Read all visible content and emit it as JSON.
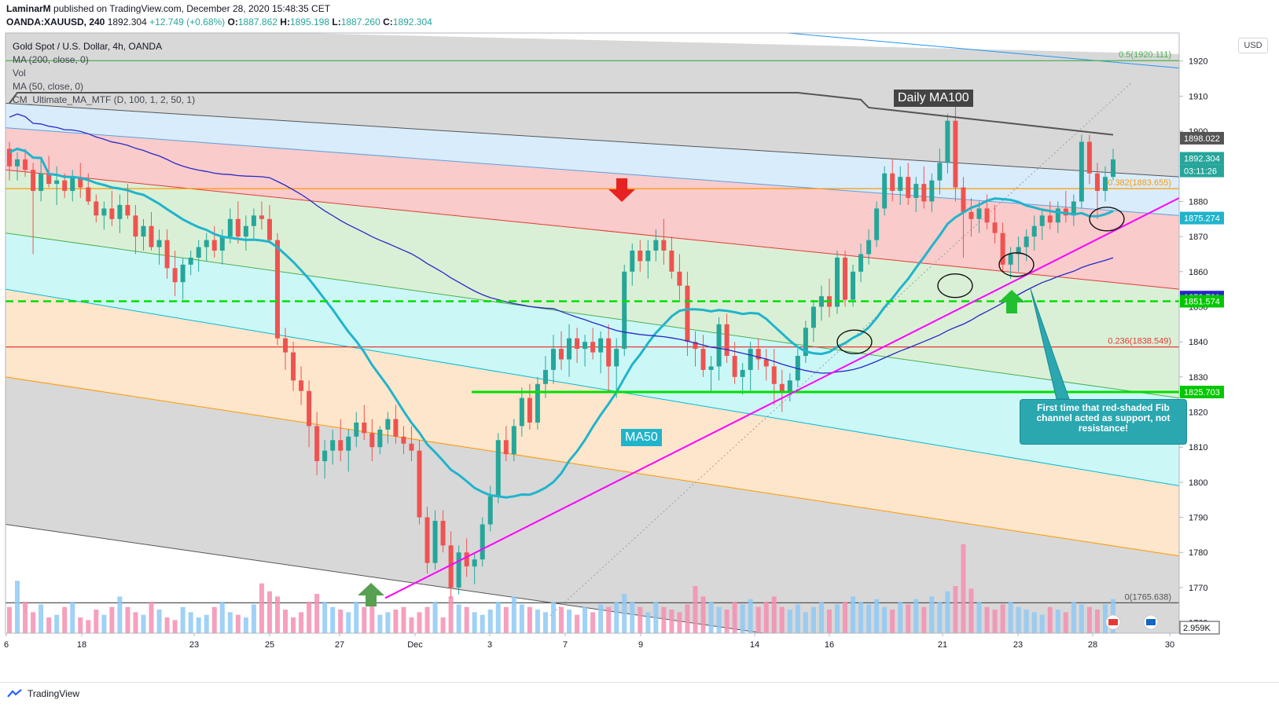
{
  "header": {
    "publisher": "LaminarM",
    "published_text": "published on TradingView.com, December 28, 2020 15:48:35 CET",
    "symbol": "OANDA:XAUUSD, 240",
    "price": "1892.304",
    "change": "+12.749 (+0.68%)",
    "o_label": "O:",
    "o_value": "1887.862",
    "h_label": "H:",
    "h_value": "1895.198",
    "l_label": "L:",
    "l_value": "1887.260",
    "c_label": "C:",
    "c_value": "1892.304"
  },
  "legend": {
    "title": "Gold Spot / U.S. Dollar, 4h, OANDA",
    "ma200": "MA (200, close, 0)",
    "vol": "Vol",
    "ma50": "MA (50, close, 0)",
    "cm": "CM_Ultimate_MA_MTF (D, 100, 1, 2, 50, 1)"
  },
  "currency_button": "USD",
  "annotations": {
    "daily_ma100": "Daily MA100",
    "ma50": "MA50",
    "note": "First time that red-shaded Fib channel acted as support, not resistance!"
  },
  "footer": {
    "brand": "TradingView"
  },
  "colors": {
    "up": "#26a69a",
    "down": "#ef5350",
    "ma50": "#20b4cc",
    "ma200": "#2828c8",
    "daily_ma100": "#555555",
    "trendline": "#ff00ff",
    "support_green": "#00e000",
    "fib_red": "#e53935",
    "fib_orange": "#ff9800"
  },
  "chart_data": {
    "type": "candlestick",
    "ylim": [
      1757,
      1928
    ],
    "y_ticks": [
      1760,
      1770,
      1780,
      1790,
      1800,
      1810,
      1820,
      1830,
      1840,
      1850,
      1860,
      1870,
      1880,
      1890,
      1900,
      1910,
      1920
    ],
    "x_ticks": [
      {
        "label": "6",
        "date": "2020-11-16"
      },
      {
        "label": "18",
        "date": "2020-11-18"
      },
      {
        "label": "23",
        "date": "2020-11-23"
      },
      {
        "label": "25",
        "date": "2020-11-25"
      },
      {
        "label": "27",
        "date": "2020-11-27"
      },
      {
        "label": "Dec",
        "date": "2020-12-01"
      },
      {
        "label": "3",
        "date": "2020-12-03"
      },
      {
        "label": "7",
        "date": "2020-12-07"
      },
      {
        "label": "9",
        "date": "2020-12-09"
      },
      {
        "label": "14",
        "date": "2020-12-14"
      },
      {
        "label": "16",
        "date": "2020-12-16"
      },
      {
        "label": "21",
        "date": "2020-12-21"
      },
      {
        "label": "23",
        "date": "2020-12-23"
      },
      {
        "label": "28",
        "date": "2020-12-28"
      },
      {
        "label": "30",
        "date": "2020-12-30"
      }
    ],
    "price_labels": [
      {
        "text": "1898.022",
        "value": 1898.022,
        "bg": "#555555"
      },
      {
        "text": "1892.304",
        "value": 1892.304,
        "bg": "#26a69a"
      },
      {
        "text": "03:11:26",
        "value": 1888.7,
        "bg": "#26a69a"
      },
      {
        "text": "1875.274",
        "value": 1875.274,
        "bg": "#20b4cc"
      },
      {
        "text": "1852.761",
        "value": 1852.761,
        "bg": "#2828c8"
      },
      {
        "text": "1851.574",
        "value": 1851.574,
        "bg": "#00c800"
      },
      {
        "text": "1825.703",
        "value": 1825.703,
        "bg": "#00c800"
      }
    ],
    "volume_label": "2.959K",
    "fib_levels": [
      {
        "text": "0.5(1920.111)",
        "value": 1920.111,
        "color": "#4caf50"
      },
      {
        "text": "0.382(1883.655)",
        "value": 1883.655,
        "color": "#ff9800"
      },
      {
        "text": "0.236(1838.549)",
        "value": 1838.549,
        "color": "#e53935"
      },
      {
        "text": "0(1765.638)",
        "value": 1765.638,
        "color": "#555555"
      }
    ],
    "candles": [
      [
        1895,
        1897,
        1886,
        1890
      ],
      [
        1890,
        1894,
        1886,
        1892
      ],
      [
        1892,
        1895,
        1887,
        1889
      ],
      [
        1889,
        1891,
        1865,
        1883
      ],
      [
        1883,
        1892,
        1880,
        1888
      ],
      [
        1888,
        1893,
        1884,
        1885
      ],
      [
        1885,
        1890,
        1879,
        1886
      ],
      [
        1886,
        1888,
        1881,
        1883
      ],
      [
        1883,
        1889,
        1880,
        1887
      ],
      [
        1887,
        1891,
        1881,
        1884
      ],
      [
        1884,
        1888,
        1879,
        1880
      ],
      [
        1880,
        1882,
        1874,
        1876
      ],
      [
        1876,
        1880,
        1872,
        1878
      ],
      [
        1878,
        1883,
        1873,
        1875
      ],
      [
        1875,
        1882,
        1871,
        1879
      ],
      [
        1879,
        1885,
        1875,
        1876
      ],
      [
        1876,
        1879,
        1865,
        1870
      ],
      [
        1870,
        1875,
        1866,
        1873
      ],
      [
        1873,
        1877,
        1866,
        1867
      ],
      [
        1867,
        1872,
        1862,
        1869
      ],
      [
        1869,
        1872,
        1858,
        1861
      ],
      [
        1861,
        1866,
        1853,
        1857
      ],
      [
        1857,
        1864,
        1852,
        1862
      ],
      [
        1862,
        1866,
        1859,
        1864
      ],
      [
        1864,
        1869,
        1860,
        1867
      ],
      [
        1867,
        1871,
        1863,
        1869
      ],
      [
        1869,
        1873,
        1864,
        1866
      ],
      [
        1866,
        1872,
        1862,
        1870
      ],
      [
        1870,
        1878,
        1868,
        1875
      ],
      [
        1875,
        1880,
        1868,
        1870
      ],
      [
        1870,
        1876,
        1866,
        1873
      ],
      [
        1873,
        1878,
        1869,
        1876
      ],
      [
        1876,
        1880,
        1872,
        1875
      ],
      [
        1875,
        1879,
        1868,
        1869
      ],
      [
        1869,
        1871,
        1839,
        1841
      ],
      [
        1841,
        1844,
        1832,
        1837
      ],
      [
        1837,
        1840,
        1826,
        1829
      ],
      [
        1829,
        1833,
        1822,
        1826
      ],
      [
        1826,
        1829,
        1810,
        1816
      ],
      [
        1816,
        1820,
        1802,
        1806
      ],
      [
        1806,
        1812,
        1801,
        1809
      ],
      [
        1809,
        1815,
        1805,
        1812
      ],
      [
        1812,
        1818,
        1806,
        1809
      ],
      [
        1809,
        1815,
        1803,
        1813
      ],
      [
        1813,
        1820,
        1810,
        1817
      ],
      [
        1817,
        1822,
        1812,
        1814
      ],
      [
        1814,
        1818,
        1806,
        1810
      ],
      [
        1810,
        1816,
        1808,
        1815
      ],
      [
        1815,
        1820,
        1811,
        1818
      ],
      [
        1818,
        1822,
        1811,
        1813
      ],
      [
        1813,
        1816,
        1808,
        1811
      ],
      [
        1811,
        1816,
        1806,
        1809
      ],
      [
        1809,
        1812,
        1788,
        1790
      ],
      [
        1790,
        1793,
        1774,
        1777
      ],
      [
        1777,
        1792,
        1775,
        1789
      ],
      [
        1789,
        1792,
        1780,
        1782
      ],
      [
        1782,
        1786,
        1767,
        1770
      ],
      [
        1770,
        1782,
        1768,
        1780
      ],
      [
        1780,
        1784,
        1773,
        1776
      ],
      [
        1776,
        1780,
        1771,
        1778
      ],
      [
        1778,
        1790,
        1776,
        1788
      ],
      [
        1788,
        1799,
        1786,
        1796
      ],
      [
        1796,
        1814,
        1794,
        1812
      ],
      [
        1812,
        1816,
        1806,
        1808
      ],
      [
        1808,
        1818,
        1806,
        1816
      ],
      [
        1816,
        1827,
        1813,
        1824
      ],
      [
        1824,
        1828,
        1815,
        1817
      ],
      [
        1817,
        1830,
        1815,
        1828
      ],
      [
        1828,
        1836,
        1824,
        1832
      ],
      [
        1832,
        1842,
        1828,
        1838
      ],
      [
        1838,
        1843,
        1832,
        1835
      ],
      [
        1835,
        1845,
        1830,
        1841
      ],
      [
        1841,
        1844,
        1834,
        1838
      ],
      [
        1838,
        1842,
        1833,
        1840
      ],
      [
        1840,
        1844,
        1835,
        1837
      ],
      [
        1837,
        1843,
        1831,
        1841
      ],
      [
        1841,
        1845,
        1826,
        1833
      ],
      [
        1833,
        1841,
        1824,
        1838
      ],
      [
        1838,
        1862,
        1836,
        1860
      ],
      [
        1860,
        1868,
        1856,
        1866
      ],
      [
        1866,
        1869,
        1860,
        1863
      ],
      [
        1863,
        1869,
        1858,
        1866
      ],
      [
        1866,
        1872,
        1863,
        1869
      ],
      [
        1869,
        1875,
        1862,
        1866
      ],
      [
        1866,
        1870,
        1858,
        1860
      ],
      [
        1860,
        1865,
        1852,
        1856
      ],
      [
        1856,
        1860,
        1836,
        1840
      ],
      [
        1840,
        1843,
        1833,
        1838
      ],
      [
        1838,
        1842,
        1830,
        1832
      ],
      [
        1832,
        1836,
        1826,
        1833
      ],
      [
        1833,
        1847,
        1829,
        1845
      ],
      [
        1845,
        1848,
        1834,
        1836
      ],
      [
        1836,
        1840,
        1828,
        1830
      ],
      [
        1830,
        1834,
        1825,
        1832
      ],
      [
        1832,
        1840,
        1826,
        1838
      ],
      [
        1838,
        1841,
        1832,
        1835
      ],
      [
        1835,
        1838,
        1829,
        1833
      ],
      [
        1833,
        1838,
        1822,
        1828
      ],
      [
        1828,
        1832,
        1820,
        1826
      ],
      [
        1826,
        1831,
        1823,
        1829
      ],
      [
        1829,
        1838,
        1827,
        1836
      ],
      [
        1836,
        1846,
        1834,
        1844
      ],
      [
        1844,
        1852,
        1840,
        1850
      ],
      [
        1850,
        1856,
        1846,
        1853
      ],
      [
        1853,
        1858,
        1847,
        1850
      ],
      [
        1850,
        1866,
        1848,
        1864
      ],
      [
        1864,
        1866,
        1850,
        1852
      ],
      [
        1852,
        1862,
        1850,
        1860
      ],
      [
        1860,
        1868,
        1857,
        1865
      ],
      [
        1865,
        1872,
        1862,
        1869
      ],
      [
        1869,
        1880,
        1867,
        1878
      ],
      [
        1878,
        1890,
        1876,
        1888
      ],
      [
        1888,
        1892,
        1880,
        1883
      ],
      [
        1883,
        1890,
        1879,
        1887
      ],
      [
        1887,
        1891,
        1879,
        1881
      ],
      [
        1881,
        1887,
        1877,
        1885
      ],
      [
        1885,
        1890,
        1878,
        1880
      ],
      [
        1880,
        1888,
        1877,
        1886
      ],
      [
        1886,
        1895,
        1882,
        1891
      ],
      [
        1891,
        1905,
        1888,
        1903
      ],
      [
        1903,
        1907,
        1880,
        1884
      ],
      [
        1884,
        1887,
        1864,
        1877
      ],
      [
        1877,
        1881,
        1870,
        1875
      ],
      [
        1875,
        1880,
        1871,
        1878
      ],
      [
        1878,
        1882,
        1872,
        1874
      ],
      [
        1874,
        1879,
        1868,
        1871
      ],
      [
        1871,
        1874,
        1860,
        1862
      ],
      [
        1862,
        1867,
        1858,
        1865
      ],
      [
        1865,
        1870,
        1860,
        1867
      ],
      [
        1867,
        1872,
        1863,
        1870
      ],
      [
        1870,
        1876,
        1866,
        1873
      ],
      [
        1873,
        1878,
        1869,
        1876
      ],
      [
        1876,
        1880,
        1872,
        1874
      ],
      [
        1874,
        1880,
        1871,
        1878
      ],
      [
        1878,
        1883,
        1874,
        1876
      ],
      [
        1876,
        1882,
        1873,
        1880
      ],
      [
        1880,
        1899,
        1878,
        1897
      ],
      [
        1897,
        1899,
        1885,
        1888
      ],
      [
        1888,
        1891,
        1875,
        1883
      ],
      [
        1883,
        1890,
        1880,
        1887
      ],
      [
        1887,
        1895,
        1886,
        1892
      ]
    ],
    "volumes": [
      0.5,
      1.0,
      0.6,
      0.4,
      0.55,
      0.3,
      0.35,
      0.5,
      0.6,
      0.3,
      0.25,
      0.45,
      0.35,
      0.5,
      0.7,
      0.5,
      0.4,
      0.35,
      0.6,
      0.45,
      0.3,
      0.25,
      0.5,
      0.4,
      0.3,
      0.35,
      0.5,
      0.6,
      0.4,
      0.35,
      0.3,
      0.55,
      0.95,
      0.8,
      0.7,
      0.45,
      0.3,
      0.4,
      0.6,
      0.75,
      0.6,
      0.5,
      0.45,
      0.4,
      0.6,
      0.5,
      0.55,
      0.35,
      0.4,
      0.45,
      0.5,
      0.3,
      0.4,
      0.5,
      0.6,
      0.3,
      0.7,
      0.55,
      0.5,
      0.4,
      0.35,
      0.45,
      0.6,
      0.5,
      0.7,
      0.55,
      0.5,
      0.45,
      0.4,
      0.6,
      0.5,
      0.45,
      0.35,
      0.5,
      0.4,
      0.55,
      0.5,
      0.6,
      0.75,
      0.6,
      0.5,
      0.4,
      0.6,
      0.5,
      0.45,
      0.4,
      0.55,
      0.9,
      0.7,
      0.6,
      0.5,
      0.45,
      0.6,
      0.55,
      0.65,
      0.5,
      0.6,
      0.7,
      0.5,
      0.45,
      0.55,
      0.4,
      0.5,
      0.6,
      0.45,
      0.55,
      0.6,
      0.7,
      0.6,
      0.55,
      0.65,
      0.5,
      0.45,
      0.6,
      0.55,
      0.65,
      0.5,
      0.7,
      0.6,
      0.8,
      0.9,
      1.7,
      0.85,
      0.6,
      0.5,
      0.45,
      0.55,
      0.6,
      0.5,
      0.45,
      0.4,
      0.35,
      0.5,
      0.45,
      0.4,
      0.6,
      0.55,
      0.5,
      0.45,
      0.55,
      0.65,
      0.45
    ]
  }
}
